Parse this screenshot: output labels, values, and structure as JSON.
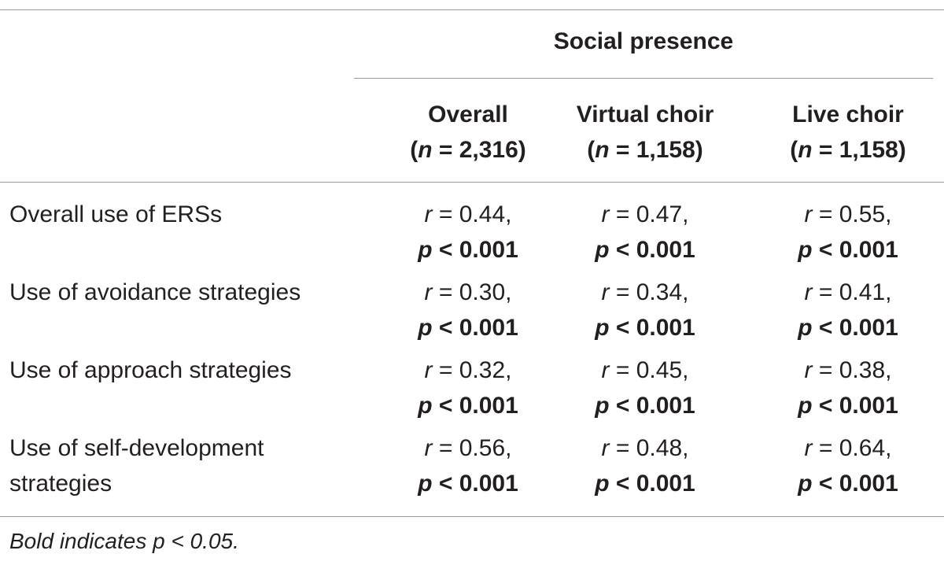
{
  "group_header": "Social presence",
  "columns": [
    {
      "label": "Overall",
      "n_label": "n",
      "n_value": "2,316"
    },
    {
      "label": "Virtual choir",
      "n_label": "n",
      "n_value": "1,158"
    },
    {
      "label": "Live choir",
      "n_label": "n",
      "n_value": "1,158"
    }
  ],
  "rows": [
    {
      "label_lines": [
        "Overall use of ERSs"
      ],
      "cells": [
        {
          "r": "0.44",
          "p": "0.001"
        },
        {
          "r": "0.47",
          "p": "0.001"
        },
        {
          "r": "0.55",
          "p": "0.001"
        }
      ]
    },
    {
      "label_lines": [
        "Use of avoidance strategies"
      ],
      "cells": [
        {
          "r": "0.30",
          "p": "0.001"
        },
        {
          "r": "0.34",
          "p": "0.001"
        },
        {
          "r": "0.41",
          "p": "0.001"
        }
      ]
    },
    {
      "label_lines": [
        "Use of approach strategies"
      ],
      "cells": [
        {
          "r": "0.32",
          "p": "0.001"
        },
        {
          "r": "0.45",
          "p": "0.001"
        },
        {
          "r": "0.38",
          "p": "0.001"
        }
      ]
    },
    {
      "label_lines": [
        "Use of self-development",
        "strategies"
      ],
      "cells": [
        {
          "r": "0.56",
          "p": "0.001"
        },
        {
          "r": "0.48",
          "p": "0.001"
        },
        {
          "r": "0.64",
          "p": "0.001"
        }
      ]
    }
  ],
  "footnote": "Bold indicates p < 0.05."
}
